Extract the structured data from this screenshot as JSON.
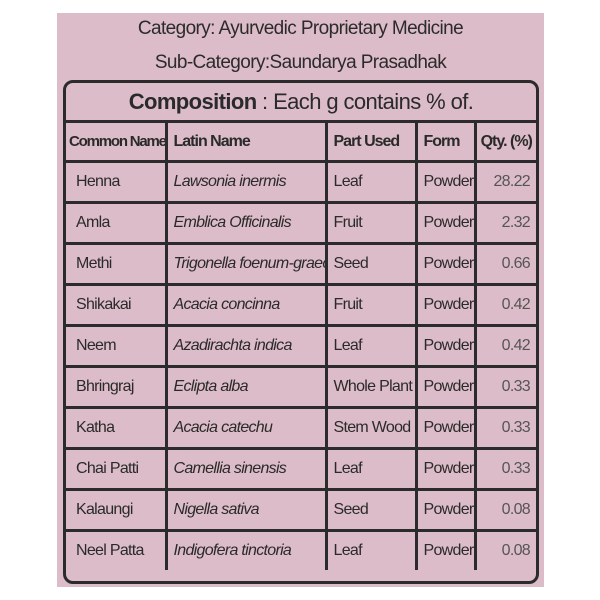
{
  "category": "Category: Ayurvedic Proprietary Medicine",
  "sub_category": "Sub-Category:Saundarya Prasadhak",
  "composition": {
    "title_bold": "Composition",
    "title_rest": " : Each g contains % of."
  },
  "columns": [
    "Common Name",
    "Latin  Name",
    "Part Used",
    "Form",
    "Qty. (%)"
  ],
  "rows": [
    {
      "common": "Henna",
      "latin": "Lawsonia inermis",
      "part": "Leaf",
      "form": "Powder",
      "qty": "28.22"
    },
    {
      "common": "Amla",
      "latin": "Emblica Officinalis",
      "part": "Fruit",
      "form": "Powder",
      "qty": "2.32"
    },
    {
      "common": "Methi",
      "latin": "Trigonella foenum-graecum",
      "part": "Seed",
      "form": "Powder",
      "qty": "0.66"
    },
    {
      "common": "Shikakai",
      "latin": "Acacia concinna",
      "part": "Fruit",
      "form": "Powder",
      "qty": "0.42"
    },
    {
      "common": "Neem",
      "latin": "Azadirachta indica",
      "part": "Leaf",
      "form": "Powder",
      "qty": "0.42"
    },
    {
      "common": "Bhringraj",
      "latin": "Eclipta alba",
      "part": "Whole  Plant",
      "form": "Powder",
      "qty": "0.33"
    },
    {
      "common": "Katha",
      "latin": "Acacia catechu",
      "part": "Stem Wood",
      "form": "Powder",
      "qty": "0.33"
    },
    {
      "common": "Chai Patti",
      "latin": "Camellia sinensis",
      "part": "Leaf",
      "form": "Powder",
      "qty": "0.33"
    },
    {
      "common": "Kalaungi",
      "latin": "Nigella sativa",
      "part": "Seed",
      "form": "Powder",
      "qty": "0.08"
    },
    {
      "common": "Neel Patta",
      "latin": "Indigofera tinctoria",
      "part": "Leaf",
      "form": "Powder",
      "qty": "0.08"
    }
  ],
  "colors": {
    "background": "#dcbcc8",
    "border": "#2b2b2b"
  }
}
